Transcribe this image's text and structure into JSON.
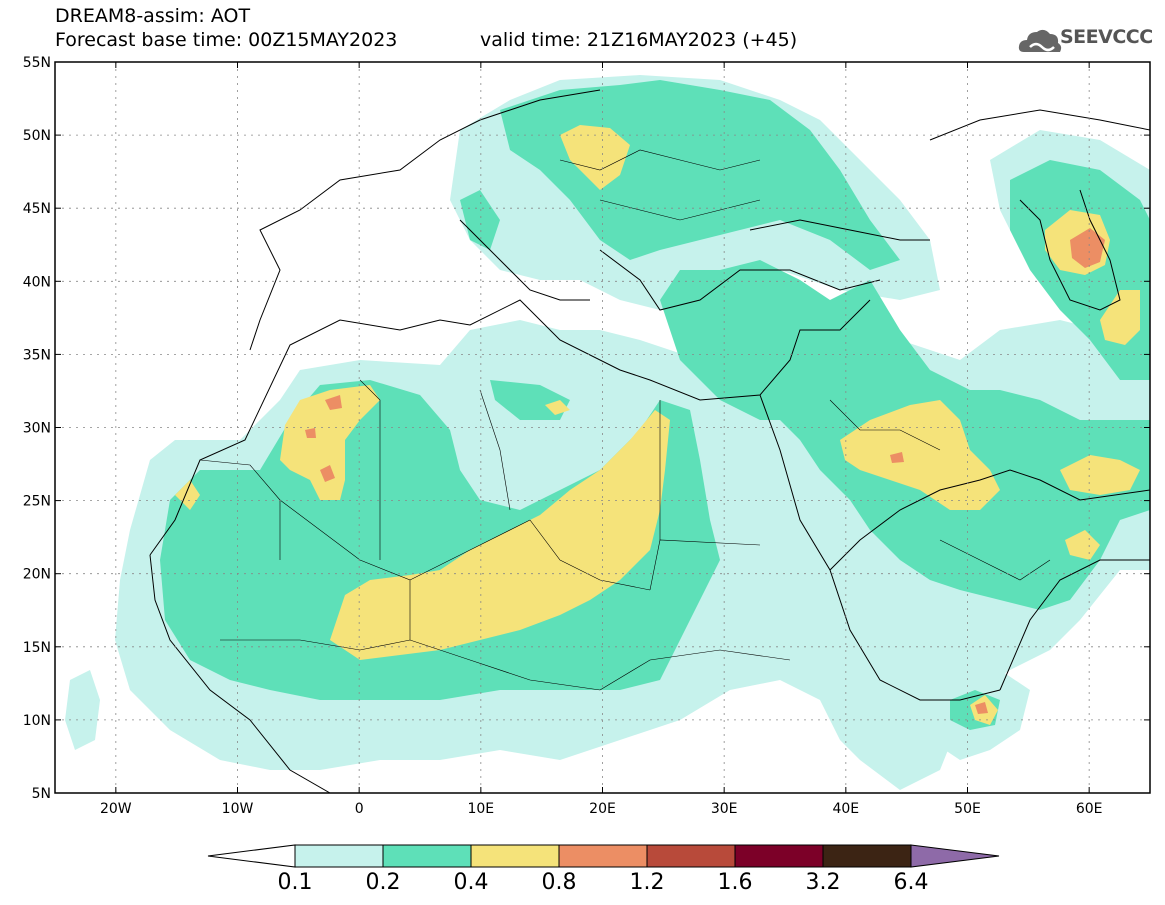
{
  "header": {
    "title": "DREAM8-assim: AOT",
    "base_time": "Forecast base time: 00Z15MAY2023",
    "valid_time": "valid time: 21Z16MAY2023 (+45)"
  },
  "logo": {
    "text": "SEEVCCC",
    "icon": "cloud-icon"
  },
  "map": {
    "lat_labels": [
      "55N",
      "50N",
      "45N",
      "40N",
      "35N",
      "30N",
      "25N",
      "20N",
      "15N",
      "10N",
      "5N"
    ],
    "lat_values": [
      55,
      50,
      45,
      40,
      35,
      30,
      25,
      20,
      15,
      10,
      5
    ],
    "lon_labels": [
      "20W",
      "10W",
      "0",
      "10E",
      "20E",
      "30E",
      "40E",
      "50E",
      "60E"
    ],
    "lon_values": [
      -20,
      -10,
      0,
      10,
      20,
      30,
      40,
      50,
      60
    ],
    "lon_range": [
      -25,
      65
    ],
    "lat_range": [
      5,
      55
    ],
    "gridlines": true
  },
  "legend": {
    "labels": [
      "0.1",
      "0.2",
      "0.4",
      "0.8",
      "1.2",
      "1.6",
      "3.2",
      "6.4"
    ],
    "colors": [
      "#c6f2ec",
      "#5ee0b8",
      "#f5e37a",
      "#ec8e64",
      "#b84a3a",
      "#7c0028",
      "#3c2414",
      "#8e6aa8"
    ]
  }
}
